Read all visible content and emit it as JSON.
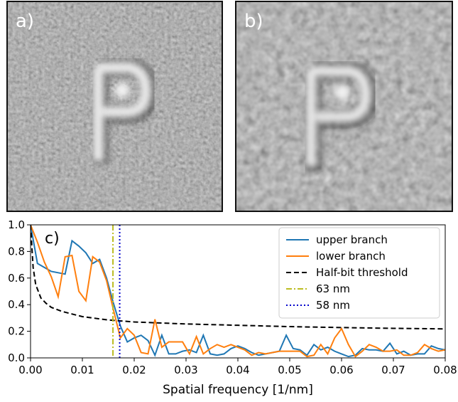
{
  "images": [
    {
      "label": "a)"
    },
    {
      "label": "b)"
    }
  ],
  "chart_data": {
    "type": "line",
    "panel_label": "c)",
    "x_label": "Spatial frequency [1/nm]",
    "xlim": [
      0,
      0.08
    ],
    "ylim": [
      0,
      1
    ],
    "xticks": [
      {
        "value": 0,
        "label": "0.00"
      },
      0.01,
      0.02,
      0.03,
      0.04,
      0.05,
      0.06,
      0.07,
      {
        "value": 0.08,
        "label": "0.08"
      }
    ],
    "yticks": [
      {
        "value": 0,
        "label": "0.0"
      },
      0.2,
      0.4,
      0.6,
      0.8,
      {
        "value": 1,
        "label": "1.0"
      }
    ],
    "legend": "upper right",
    "series": [
      {
        "name": "upper branch",
        "color": "#1f77b4",
        "style": "solid",
        "x": [
          0,
          0.00133,
          0.00267,
          0.004,
          0.00533,
          0.00667,
          0.008,
          0.00933,
          0.01067,
          0.012,
          0.01333,
          0.01467,
          0.016,
          0.01733,
          0.01867,
          0.02,
          0.02133,
          0.02267,
          0.024,
          0.02533,
          0.02667,
          0.028,
          0.02933,
          0.03067,
          0.032,
          0.03333,
          0.03467,
          0.036,
          0.03733,
          0.03867,
          0.04,
          0.04133,
          0.04267,
          0.044,
          0.04533,
          0.04667,
          0.048,
          0.04933,
          0.05067,
          0.052,
          0.05333,
          0.05467,
          0.056,
          0.05733,
          0.05867,
          0.06,
          0.06133,
          0.06267,
          0.064,
          0.06533,
          0.06667,
          0.068,
          0.06933,
          0.07067,
          0.072,
          0.07333,
          0.07467,
          0.076,
          0.07733,
          0.07867,
          0.08
        ],
        "values": [
          1.0,
          0.71,
          0.68,
          0.65,
          0.64,
          0.63,
          0.88,
          0.84,
          0.79,
          0.71,
          0.74,
          0.6,
          0.41,
          0.24,
          0.12,
          0.15,
          0.17,
          0.13,
          0.02,
          0.17,
          0.03,
          0.03,
          0.05,
          0.06,
          0.04,
          0.17,
          0.03,
          0.02,
          0.03,
          0.07,
          0.09,
          0.07,
          0.04,
          0.02,
          0.03,
          0.04,
          0.05,
          0.17,
          0.07,
          0.06,
          0.02,
          0.1,
          0.06,
          0.08,
          0.05,
          0.03,
          0.01,
          0.02,
          0.07,
          0.06,
          0.06,
          0.05,
          0.11,
          0.03,
          0.05,
          0.02,
          0.03,
          0.03,
          0.09,
          0.07,
          0.06
        ]
      },
      {
        "name": "lower branch",
        "color": "#ff7f0e",
        "style": "solid",
        "x": [
          0,
          0.00133,
          0.00267,
          0.004,
          0.00533,
          0.00667,
          0.008,
          0.00933,
          0.01067,
          0.012,
          0.01333,
          0.01467,
          0.016,
          0.01733,
          0.01867,
          0.02,
          0.02133,
          0.02267,
          0.024,
          0.02533,
          0.02667,
          0.028,
          0.02933,
          0.03067,
          0.032,
          0.03333,
          0.03467,
          0.036,
          0.03733,
          0.03867,
          0.04,
          0.04133,
          0.04267,
          0.044,
          0.04533,
          0.04667,
          0.048,
          0.04933,
          0.05067,
          0.052,
          0.05333,
          0.05467,
          0.056,
          0.05733,
          0.05867,
          0.06,
          0.06133,
          0.06267,
          0.064,
          0.06533,
          0.06667,
          0.068,
          0.06933,
          0.07067,
          0.072,
          0.07333,
          0.07467,
          0.076,
          0.07733,
          0.07867,
          0.08
        ],
        "values": [
          1.0,
          0.87,
          0.72,
          0.61,
          0.46,
          0.76,
          0.77,
          0.5,
          0.43,
          0.76,
          0.72,
          0.58,
          0.36,
          0.15,
          0.22,
          0.17,
          0.04,
          0.03,
          0.29,
          0.08,
          0.12,
          0.12,
          0.12,
          0.03,
          0.16,
          0.03,
          0.07,
          0.1,
          0.08,
          0.1,
          0.08,
          0.06,
          0.02,
          0.04,
          0.03,
          0.04,
          0.05,
          0.05,
          0.05,
          0.05,
          0.01,
          0.02,
          0.1,
          0.03,
          0.15,
          0.22,
          0.1,
          0.01,
          0.05,
          0.1,
          0.08,
          0.05,
          0.05,
          0.06,
          0.02,
          0.02,
          0.04,
          0.1,
          0.07,
          0.05,
          0.06
        ]
      },
      {
        "name": "Half-bit threshold",
        "color": "#000000",
        "style": "dashed",
        "x": [
          0,
          0.0005,
          0.001,
          0.002,
          0.003,
          0.004,
          0.006,
          0.008,
          0.01,
          0.015,
          0.02,
          0.03,
          0.04,
          0.05,
          0.06,
          0.07,
          0.08
        ],
        "values": [
          1.0,
          0.68,
          0.55,
          0.45,
          0.41,
          0.38,
          0.35,
          0.33,
          0.31,
          0.285,
          0.27,
          0.255,
          0.245,
          0.235,
          0.228,
          0.222,
          0.218
        ]
      },
      {
        "name": "63 nm",
        "color": "#bcbd22",
        "style": "dashdot",
        "x": 0.0159
      },
      {
        "name": "58 nm",
        "color": "#0000cc",
        "style": "dotted",
        "x": 0.0172
      }
    ]
  }
}
